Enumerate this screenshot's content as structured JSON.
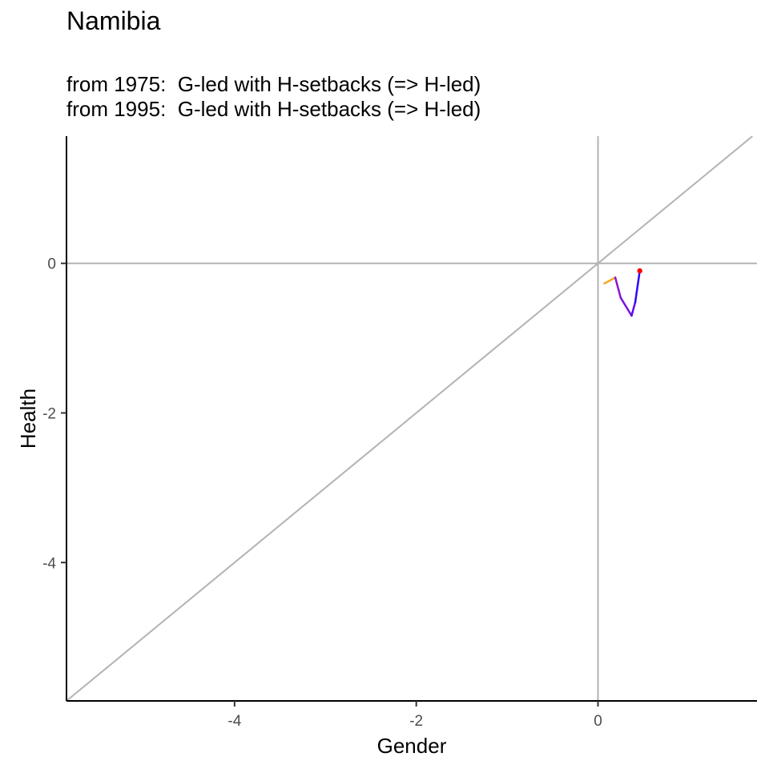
{
  "chart_data": {
    "type": "line",
    "title": "Namibia",
    "subtitle_lines": [
      "from 1975:  G-led with H-setbacks (=> H-led)",
      "from 1995:  G-led with H-setbacks (=> H-led)"
    ],
    "xlabel": "Gender",
    "ylabel": "Health",
    "xlim": [
      -5.85,
      1.75
    ],
    "ylim": [
      -5.85,
      1.7
    ],
    "x_ticks": [
      -4,
      -2,
      0
    ],
    "y_ticks": [
      0,
      -2,
      -4
    ],
    "grid": false,
    "reference_lines": [
      {
        "type": "vline",
        "x": 0,
        "color": "#b3b3b3"
      },
      {
        "type": "hline",
        "y": 0,
        "color": "#b3b3b3"
      },
      {
        "type": "diagonal",
        "slope": 1,
        "intercept": 0,
        "color": "#b3b3b3"
      }
    ],
    "series": [
      {
        "points": [
          {
            "x": 0.07,
            "y": -0.27
          },
          {
            "x": 0.19,
            "y": -0.19
          },
          {
            "x": 0.25,
            "y": -0.46
          },
          {
            "x": 0.37,
            "y": -0.7
          },
          {
            "x": 0.41,
            "y": -0.52
          },
          {
            "x": 0.46,
            "y": -0.1
          }
        ],
        "segment_colors": [
          "#f5a623",
          "#8a14d8",
          "#7a14e0",
          "#5a10f0",
          "#2a08ff"
        ],
        "end_marker": {
          "x": 0.46,
          "y": -0.1,
          "color": "#ff0000"
        }
      }
    ]
  }
}
